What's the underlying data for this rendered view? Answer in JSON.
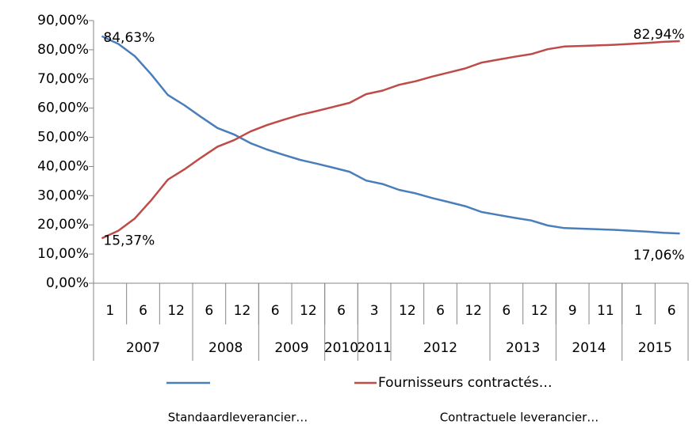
{
  "chart_data": {
    "type": "line",
    "categories": [
      "1",
      null,
      "6",
      null,
      "12",
      null,
      "6",
      null,
      "12",
      null,
      "6",
      null,
      "12",
      null,
      "6",
      null,
      "3",
      null,
      "12",
      null,
      "6",
      null,
      "12",
      null,
      "6",
      null,
      "12",
      null,
      "9",
      null,
      "11",
      null,
      "1",
      null,
      "6",
      null
    ],
    "year_groups": [
      {
        "label": "2007",
        "count": 6
      },
      {
        "label": "2008",
        "count": 4
      },
      {
        "label": "2009",
        "count": 4
      },
      {
        "label": "2010",
        "count": 2
      },
      {
        "label": "2011",
        "count": 2
      },
      {
        "label": "2012",
        "count": 6
      },
      {
        "label": "2013",
        "count": 4
      },
      {
        "label": "2014",
        "count": 4
      },
      {
        "label": "2015",
        "count": 4
      }
    ],
    "series": [
      {
        "name": null,
        "caption": "Standaardleverancier…",
        "color": "#4a7ebb",
        "values": [
          84.63,
          82,
          77.8,
          71.5,
          64.5,
          61,
          57,
          53.2,
          51,
          48,
          45.8,
          44,
          42.3,
          41,
          39.6,
          38.2,
          35.2,
          34,
          32,
          30.8,
          29.2,
          27.8,
          26.4,
          24.4,
          23.4,
          22.4,
          21.5,
          19.8,
          18.9,
          18.7,
          18.5,
          18.3,
          18,
          17.7,
          17.3,
          17.06
        ],
        "value_labels": [
          "84,63%",
          null,
          null,
          null,
          null,
          null,
          null,
          null,
          null,
          null,
          null,
          null,
          null,
          null,
          null,
          null,
          null,
          null,
          null,
          null,
          null,
          null,
          null,
          null,
          null,
          null,
          null,
          null,
          null,
          null,
          null,
          null,
          null,
          null,
          null,
          "17,06%"
        ]
      },
      {
        "name": "Fournisseurs contractés…",
        "caption": "Contractuele leverancier…",
        "color": "#be4b48",
        "values": [
          15.37,
          18,
          22.2,
          28.5,
          35.5,
          39,
          43,
          46.8,
          49,
          52,
          54.2,
          56,
          57.7,
          59,
          60.4,
          61.8,
          64.8,
          66,
          68,
          69.2,
          70.8,
          72.2,
          73.6,
          75.6,
          76.6,
          77.6,
          78.5,
          80.2,
          81.1,
          81.3,
          81.5,
          81.7,
          82,
          82.3,
          82.7,
          82.94
        ],
        "value_labels": [
          "15,37%",
          null,
          null,
          null,
          null,
          null,
          null,
          null,
          null,
          null,
          null,
          null,
          null,
          null,
          null,
          null,
          null,
          null,
          null,
          null,
          null,
          null,
          null,
          null,
          null,
          null,
          null,
          null,
          null,
          null,
          null,
          null,
          null,
          null,
          null,
          "82,94%"
        ]
      }
    ],
    "ylim": [
      0,
      90
    ],
    "yticks": [
      {
        "value": 0,
        "label": "0,00%"
      },
      {
        "value": 10,
        "label": "10,00%"
      },
      {
        "value": 20,
        "label": "20,00%"
      },
      {
        "value": 30,
        "label": "30,00%"
      },
      {
        "value": 40,
        "label": "40,00%"
      },
      {
        "value": 50,
        "label": "50,00%"
      },
      {
        "value": 60,
        "label": "60,00%"
      },
      {
        "value": 70,
        "label": "70,00%"
      },
      {
        "value": 80,
        "label": "80,00%"
      },
      {
        "value": 90,
        "label": "90,00%"
      }
    ],
    "grid": false
  }
}
